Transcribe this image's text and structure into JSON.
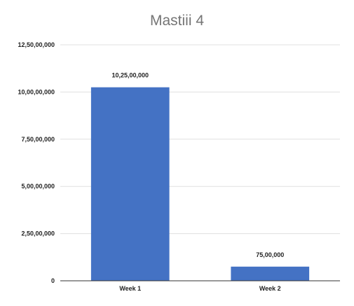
{
  "chart_data": {
    "type": "bar",
    "title": "Mastiii 4",
    "categories": [
      "Week 1",
      "Week 2"
    ],
    "values": [
      102500000,
      7500000
    ],
    "data_labels": [
      "10,25,00,000",
      "75,00,000"
    ],
    "y_ticks": [
      0,
      25000000,
      50000000,
      75000000,
      100000000,
      125000000
    ],
    "y_tick_labels": [
      "0",
      "2,50,00,000",
      "5,00,00,000",
      "7,50,00,000",
      "10,00,00,000",
      "12,50,00,000"
    ],
    "ylim": [
      0,
      125000000
    ],
    "grid": true,
    "legend": "none",
    "bar_color": "#4472c4"
  }
}
